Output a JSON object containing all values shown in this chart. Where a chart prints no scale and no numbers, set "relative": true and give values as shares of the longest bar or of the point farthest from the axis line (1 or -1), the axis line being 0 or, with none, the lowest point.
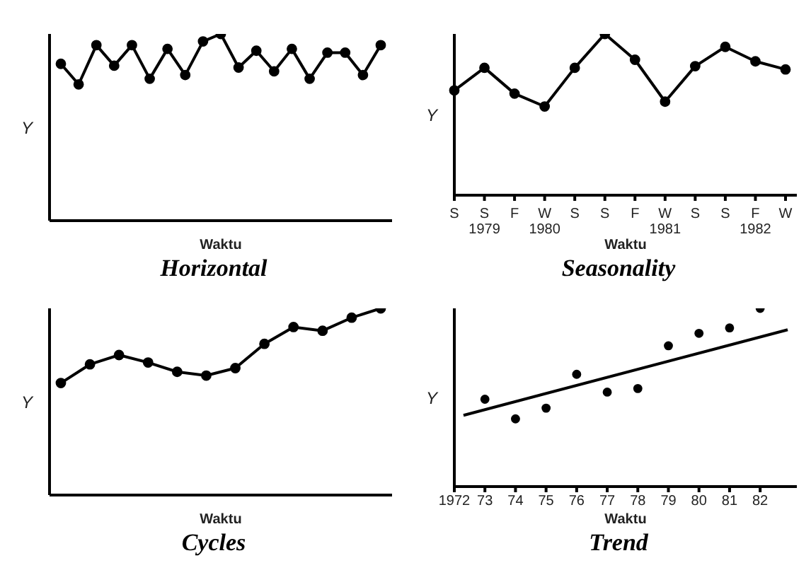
{
  "chart_data": [
    {
      "type": "line",
      "title": "Horizontal",
      "xlabel": "Waktu",
      "ylabel": "Y",
      "relative": true,
      "marker": "circle",
      "categories": [
        null,
        null,
        null,
        null,
        null,
        null,
        null,
        null,
        null,
        null,
        null,
        null,
        null,
        null,
        null,
        null,
        null,
        null,
        null
      ],
      "series": [
        {
          "color": "#000000",
          "values": [
            0.84,
            0.73,
            0.94,
            0.83,
            0.94,
            0.76,
            0.92,
            0.78,
            0.96,
            1,
            0.82,
            0.91,
            0.8,
            0.92,
            0.76,
            0.9,
            0.9,
            0.78,
            0.94
          ]
        }
      ]
    },
    {
      "type": "line",
      "title": "Seasonality",
      "xlabel": "Waktu",
      "ylabel": "Y",
      "relative": true,
      "marker": "circle",
      "categories": [
        "S",
        "S\n1979",
        "F",
        "W\n1980",
        "S",
        "S",
        "F",
        "W\n1981",
        "S",
        "S",
        "F\n1982",
        "W"
      ],
      "series": [
        {
          "color": "#000000",
          "values": [
            0.65,
            0.79,
            0.63,
            0.55,
            0.79,
            1,
            0.84,
            0.58,
            0.8,
            0.92,
            0.83,
            0.78
          ]
        }
      ]
    },
    {
      "type": "line",
      "title": "Cycles",
      "xlabel": "Waktu",
      "ylabel": "Y",
      "relative": true,
      "marker": "circle",
      "categories": [
        null,
        null,
        null,
        null,
        null,
        null,
        null,
        null,
        null,
        null,
        null,
        null
      ],
      "series": [
        {
          "color": "#000000",
          "values": [
            0.6,
            0.7,
            0.75,
            0.71,
            0.66,
            0.64,
            0.68,
            0.81,
            0.9,
            0.88,
            0.95,
            1
          ]
        }
      ]
    },
    {
      "type": "scatter",
      "title": "Trend",
      "xlabel": "Waktu",
      "ylabel": "Y",
      "relative": true,
      "x": [
        1973,
        1974,
        1975,
        1976,
        1977,
        1978,
        1979,
        1980,
        1981,
        1982
      ],
      "xlim": [
        1972,
        1983.2
      ],
      "xticks": [
        {
          "value": 1972,
          "label": "1972"
        },
        {
          "value": 1973,
          "label": "73"
        },
        {
          "value": 1974,
          "label": "74"
        },
        {
          "value": 1975,
          "label": "75"
        },
        {
          "value": 1976,
          "label": "76"
        },
        {
          "value": 1977,
          "label": "77"
        },
        {
          "value": 1978,
          "label": "78"
        },
        {
          "value": 1979,
          "label": "79"
        },
        {
          "value": 1980,
          "label": "80"
        },
        {
          "value": 1981,
          "label": "81"
        },
        {
          "value": 1982,
          "label": "82"
        }
      ],
      "series": [
        {
          "color": "#000000",
          "values": [
            0.49,
            0.38,
            0.44,
            0.63,
            0.53,
            0.55,
            0.79,
            0.86,
            0.89,
            1
          ]
        },
        {
          "type": "line",
          "color": "#000000",
          "x": [
            1972.3,
            1982.9
          ],
          "values": [
            0.4,
            0.88
          ]
        }
      ]
    }
  ]
}
